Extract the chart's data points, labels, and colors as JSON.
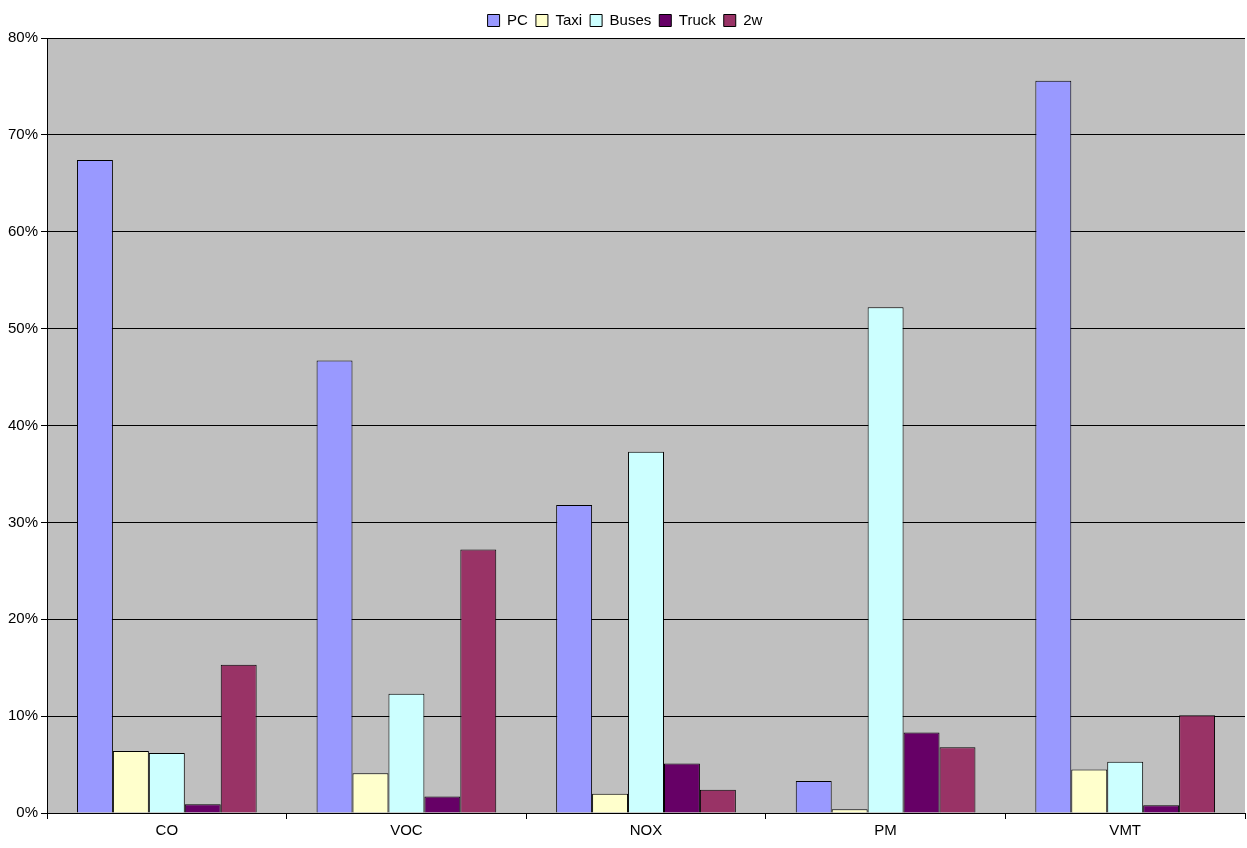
{
  "chart_data": {
    "type": "bar",
    "categories": [
      "CO",
      "VOC",
      "NOX",
      "PM",
      "VMT"
    ],
    "series": [
      {
        "name": "PC",
        "color": "#9999ff",
        "values": [
          67.4,
          46.7,
          31.8,
          3.3,
          75.6
        ]
      },
      {
        "name": "Taxi",
        "color": "#ffffcc",
        "values": [
          6.4,
          4.1,
          2.0,
          0.4,
          4.5
        ]
      },
      {
        "name": "Buses",
        "color": "#ccffff",
        "values": [
          6.2,
          12.3,
          37.3,
          52.2,
          5.3
        ]
      },
      {
        "name": "Truck",
        "color": "#660066",
        "values": [
          0.9,
          1.7,
          5.1,
          8.3,
          0.8
        ]
      },
      {
        "name": "2w",
        "color": "#993366",
        "values": [
          15.3,
          27.2,
          2.4,
          6.8,
          10.1
        ]
      }
    ],
    "ylim": [
      0,
      80
    ],
    "yticks": [
      {
        "value": 0,
        "label": "0%"
      },
      {
        "value": 10,
        "label": "10%"
      },
      {
        "value": 20,
        "label": "20%"
      },
      {
        "value": 30,
        "label": "30%"
      },
      {
        "value": 40,
        "label": "40%"
      },
      {
        "value": 50,
        "label": "50%"
      },
      {
        "value": 60,
        "label": "60%"
      },
      {
        "value": 70,
        "label": "70%"
      },
      {
        "value": 80,
        "label": "80%"
      }
    ],
    "grid": "y",
    "legend": "top"
  }
}
